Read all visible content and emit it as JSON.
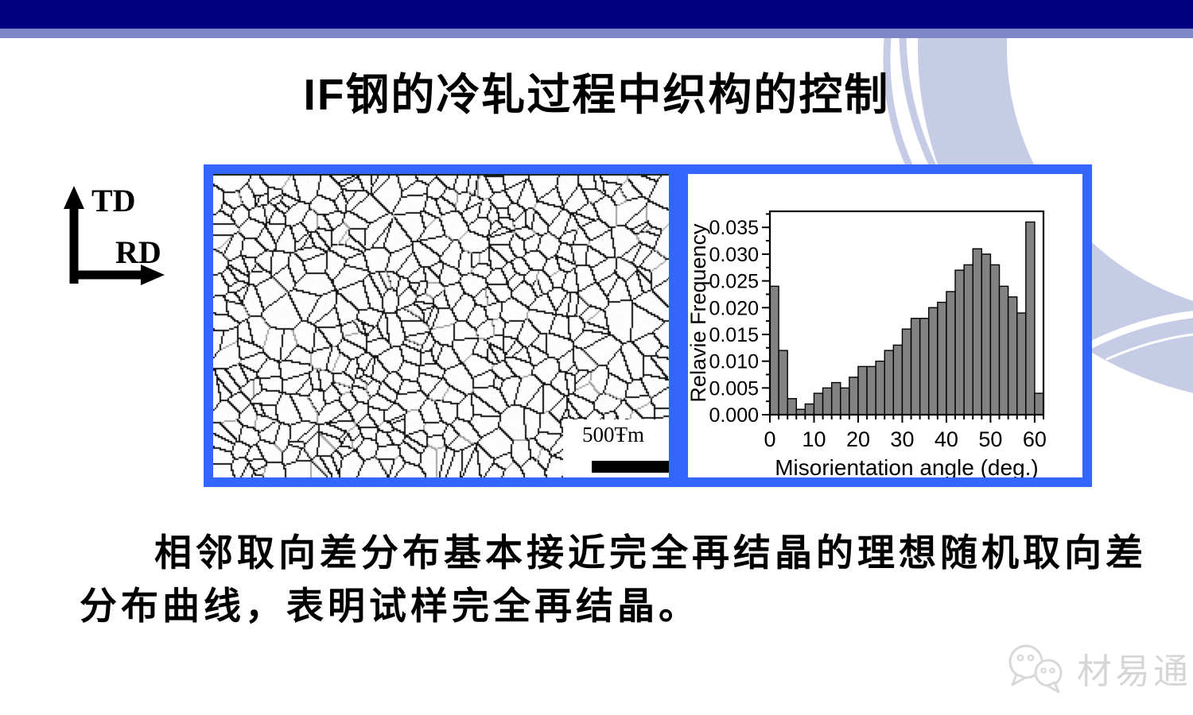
{
  "slide": {
    "title": "IF钢的冷轧过程中织构的控制"
  },
  "colors": {
    "header_bar": "#000080",
    "header_band": "#7e88c6",
    "figure_frame": "#3366ff",
    "ring": "#c7cce6",
    "bar_fill": "#828282"
  },
  "axes_indicator": {
    "vertical": "TD",
    "horizontal": "RD"
  },
  "micrograph": {
    "scale_label": "500Ŧm"
  },
  "chart_data": {
    "type": "bar",
    "title": "",
    "xlabel": "Misorientation angle (deg.)",
    "ylabel": "Relavie Frequency",
    "bin_start": 0,
    "bin_width": 2,
    "values": [
      0.024,
      0.012,
      0.003,
      0.001,
      0.002,
      0.004,
      0.005,
      0.006,
      0.005,
      0.007,
      0.009,
      0.009,
      0.01,
      0.012,
      0.013,
      0.016,
      0.018,
      0.018,
      0.02,
      0.021,
      0.023,
      0.027,
      0.028,
      0.031,
      0.03,
      0.028,
      0.024,
      0.022,
      0.019,
      0.036,
      0.004
    ],
    "xlim": [
      0,
      62
    ],
    "ylim": [
      0,
      0.038
    ],
    "x_major_ticks": [
      0,
      10,
      20,
      30,
      40,
      50,
      60
    ],
    "x_minor_step": 2,
    "y_major_step": 0.005,
    "y_minor_step": 0.0025,
    "y_tick_decimals": 3,
    "grid": false,
    "legend": false
  },
  "caption": "相邻取向差分布基本接近完全再结晶的理想随机取向差分布曲线，表明试样完全再结晶。",
  "watermark": {
    "text": "材易通"
  }
}
